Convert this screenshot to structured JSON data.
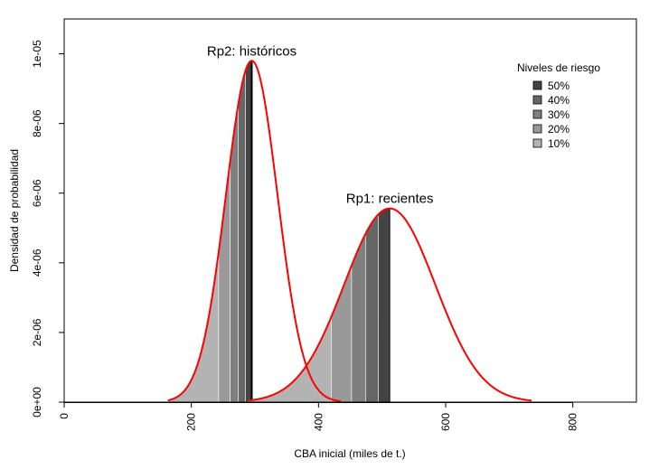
{
  "chart_data": {
    "type": "area",
    "xlabel": "CBA inicial (miles de t.)",
    "ylabel": "Densidad de probabilidad",
    "xlim": [
      0,
      900
    ],
    "ylim": [
      0,
      1.1e-05
    ],
    "x_ticks": [
      0,
      200,
      400,
      600,
      800
    ],
    "x_tick_labels": [
      "0",
      "200",
      "400",
      "600",
      "800"
    ],
    "y_ticks": [
      0,
      2e-06,
      4e-06,
      6e-06,
      8e-06,
      1e-05
    ],
    "y_tick_labels": [
      "0e+00",
      "2e-06",
      "4e-06",
      "6e-06",
      "8e-06",
      "1e-05"
    ],
    "curve_color": "#ff0000",
    "series": [
      {
        "annotation": "Rp2: históricos",
        "distribution": "normal",
        "mean": 295,
        "sd": 40.6,
        "x_range": [
          163,
          435
        ],
        "peak_density": 9.8e-06,
        "risk_level_quantiles": [
          {
            "level": "10%",
            "x_from": 163,
            "x_to": 243
          },
          {
            "level": "20%",
            "x_from": 243,
            "x_to": 261
          },
          {
            "level": "30%",
            "x_from": 261,
            "x_to": 274
          },
          {
            "level": "40%",
            "x_from": 274,
            "x_to": 285
          },
          {
            "level": "50%",
            "x_from": 285,
            "x_to": 295
          }
        ]
      },
      {
        "annotation": "Rp1: recientes",
        "distribution": "normal",
        "mean": 512,
        "sd": 71.7,
        "x_range": [
          290,
          735
        ],
        "peak_density": 5.56e-06,
        "risk_level_quantiles": [
          {
            "level": "10%",
            "x_from": 290,
            "x_to": 420
          },
          {
            "level": "20%",
            "x_from": 420,
            "x_to": 452
          },
          {
            "level": "30%",
            "x_from": 452,
            "x_to": 474
          },
          {
            "level": "40%",
            "x_from": 474,
            "x_to": 494
          },
          {
            "level": "50%",
            "x_from": 494,
            "x_to": 512
          }
        ]
      }
    ],
    "legend": {
      "title": "Niveles de riesgo",
      "placement": "top-right",
      "entries": [
        {
          "label": "50%",
          "color": "#444444"
        },
        {
          "label": "40%",
          "color": "#666666"
        },
        {
          "label": "30%",
          "color": "#7f7f7f"
        },
        {
          "label": "20%",
          "color": "#999999"
        },
        {
          "label": "10%",
          "color": "#b3b3b3"
        }
      ]
    }
  }
}
